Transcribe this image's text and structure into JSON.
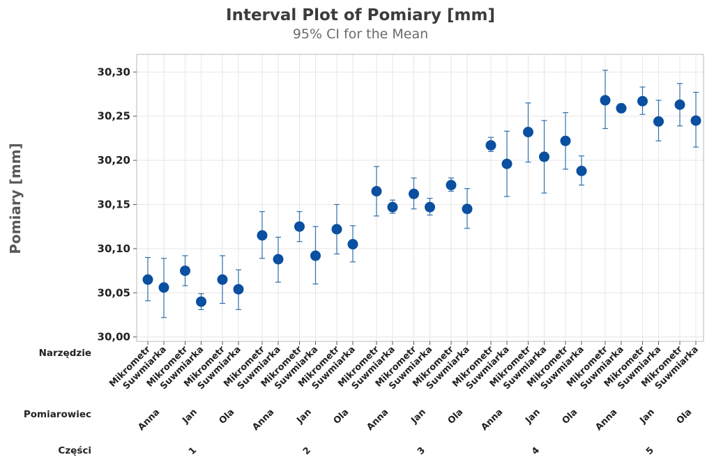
{
  "chart_data": {
    "type": "scatter",
    "subtype": "interval-plot",
    "title": "Interval Plot of Pomiary [mm]",
    "subtitle": "95% CI for the Mean",
    "ylabel": "Pomiary [mm]",
    "ylim": [
      29.995,
      30.32
    ],
    "yticks": [
      "30,00",
      "30,05",
      "30,10",
      "30,15",
      "30,20",
      "30,25",
      "30,30"
    ],
    "ytick_values": [
      30.0,
      30.05,
      30.1,
      30.15,
      30.2,
      30.25,
      30.3
    ],
    "grid": true,
    "point_color": "#0a4fa0",
    "bar_color": "#2e6fa8",
    "row_labels": {
      "tool": "Narzędzie",
      "operator": "Pomiarowiec",
      "part": "Części"
    },
    "tools": [
      "Mikrometr",
      "Suwmiarka"
    ],
    "operators": [
      "Anna",
      "Jan",
      "Ola"
    ],
    "parts": [
      "1",
      "2",
      "3",
      "4",
      "5"
    ],
    "points": [
      {
        "part": "1",
        "operator": "Anna",
        "tool": "Mikrometr",
        "mean": 30.065,
        "lower": 30.041,
        "upper": 30.09
      },
      {
        "part": "1",
        "operator": "Anna",
        "tool": "Suwmiarka",
        "mean": 30.056,
        "lower": 30.022,
        "upper": 30.089
      },
      {
        "part": "1",
        "operator": "Jan",
        "tool": "Mikrometr",
        "mean": 30.075,
        "lower": 30.058,
        "upper": 30.092
      },
      {
        "part": "1",
        "operator": "Jan",
        "tool": "Suwmiarka",
        "mean": 30.04,
        "lower": 30.031,
        "upper": 30.049
      },
      {
        "part": "1",
        "operator": "Ola",
        "tool": "Mikrometr",
        "mean": 30.065,
        "lower": 30.038,
        "upper": 30.092
      },
      {
        "part": "1",
        "operator": "Ola",
        "tool": "Suwmiarka",
        "mean": 30.054,
        "lower": 30.031,
        "upper": 30.076
      },
      {
        "part": "2",
        "operator": "Anna",
        "tool": "Mikrometr",
        "mean": 30.115,
        "lower": 30.089,
        "upper": 30.142
      },
      {
        "part": "2",
        "operator": "Anna",
        "tool": "Suwmiarka",
        "mean": 30.088,
        "lower": 30.062,
        "upper": 30.113
      },
      {
        "part": "2",
        "operator": "Jan",
        "tool": "Mikrometr",
        "mean": 30.125,
        "lower": 30.108,
        "upper": 30.142
      },
      {
        "part": "2",
        "operator": "Jan",
        "tool": "Suwmiarka",
        "mean": 30.092,
        "lower": 30.06,
        "upper": 30.125
      },
      {
        "part": "2",
        "operator": "Ola",
        "tool": "Mikrometr",
        "mean": 30.122,
        "lower": 30.094,
        "upper": 30.15
      },
      {
        "part": "2",
        "operator": "Ola",
        "tool": "Suwmiarka",
        "mean": 30.105,
        "lower": 30.085,
        "upper": 30.126
      },
      {
        "part": "3",
        "operator": "Anna",
        "tool": "Mikrometr",
        "mean": 30.165,
        "lower": 30.137,
        "upper": 30.193
      },
      {
        "part": "3",
        "operator": "Anna",
        "tool": "Suwmiarka",
        "mean": 30.147,
        "lower": 30.14,
        "upper": 30.155
      },
      {
        "part": "3",
        "operator": "Jan",
        "tool": "Mikrometr",
        "mean": 30.162,
        "lower": 30.145,
        "upper": 30.18
      },
      {
        "part": "3",
        "operator": "Jan",
        "tool": "Suwmiarka",
        "mean": 30.147,
        "lower": 30.138,
        "upper": 30.157
      },
      {
        "part": "3",
        "operator": "Ola",
        "tool": "Mikrometr",
        "mean": 30.172,
        "lower": 30.165,
        "upper": 30.18
      },
      {
        "part": "3",
        "operator": "Ola",
        "tool": "Suwmiarka",
        "mean": 30.145,
        "lower": 30.123,
        "upper": 30.168
      },
      {
        "part": "4",
        "operator": "Anna",
        "tool": "Mikrometr",
        "mean": 30.217,
        "lower": 30.21,
        "upper": 30.226
      },
      {
        "part": "4",
        "operator": "Anna",
        "tool": "Suwmiarka",
        "mean": 30.196,
        "lower": 30.159,
        "upper": 30.233
      },
      {
        "part": "4",
        "operator": "Jan",
        "tool": "Mikrometr",
        "mean": 30.232,
        "lower": 30.198,
        "upper": 30.265
      },
      {
        "part": "4",
        "operator": "Jan",
        "tool": "Suwmiarka",
        "mean": 30.204,
        "lower": 30.163,
        "upper": 30.245
      },
      {
        "part": "4",
        "operator": "Ola",
        "tool": "Mikrometr",
        "mean": 30.222,
        "lower": 30.19,
        "upper": 30.254
      },
      {
        "part": "4",
        "operator": "Ola",
        "tool": "Suwmiarka",
        "mean": 30.188,
        "lower": 30.172,
        "upper": 30.205
      },
      {
        "part": "5",
        "operator": "Anna",
        "tool": "Mikrometr",
        "mean": 30.268,
        "lower": 30.236,
        "upper": 30.302
      },
      {
        "part": "5",
        "operator": "Anna",
        "tool": "Suwmiarka",
        "mean": 30.259,
        "lower": 30.254,
        "upper": 30.264
      },
      {
        "part": "5",
        "operator": "Jan",
        "tool": "Mikrometr",
        "mean": 30.267,
        "lower": 30.252,
        "upper": 30.283
      },
      {
        "part": "5",
        "operator": "Jan",
        "tool": "Suwmiarka",
        "mean": 30.244,
        "lower": 30.222,
        "upper": 30.268
      },
      {
        "part": "5",
        "operator": "Ola",
        "tool": "Mikrometr",
        "mean": 30.263,
        "lower": 30.239,
        "upper": 30.287
      },
      {
        "part": "5",
        "operator": "Ola",
        "tool": "Suwmiarka",
        "mean": 30.245,
        "lower": 30.215,
        "upper": 30.277
      }
    ]
  }
}
